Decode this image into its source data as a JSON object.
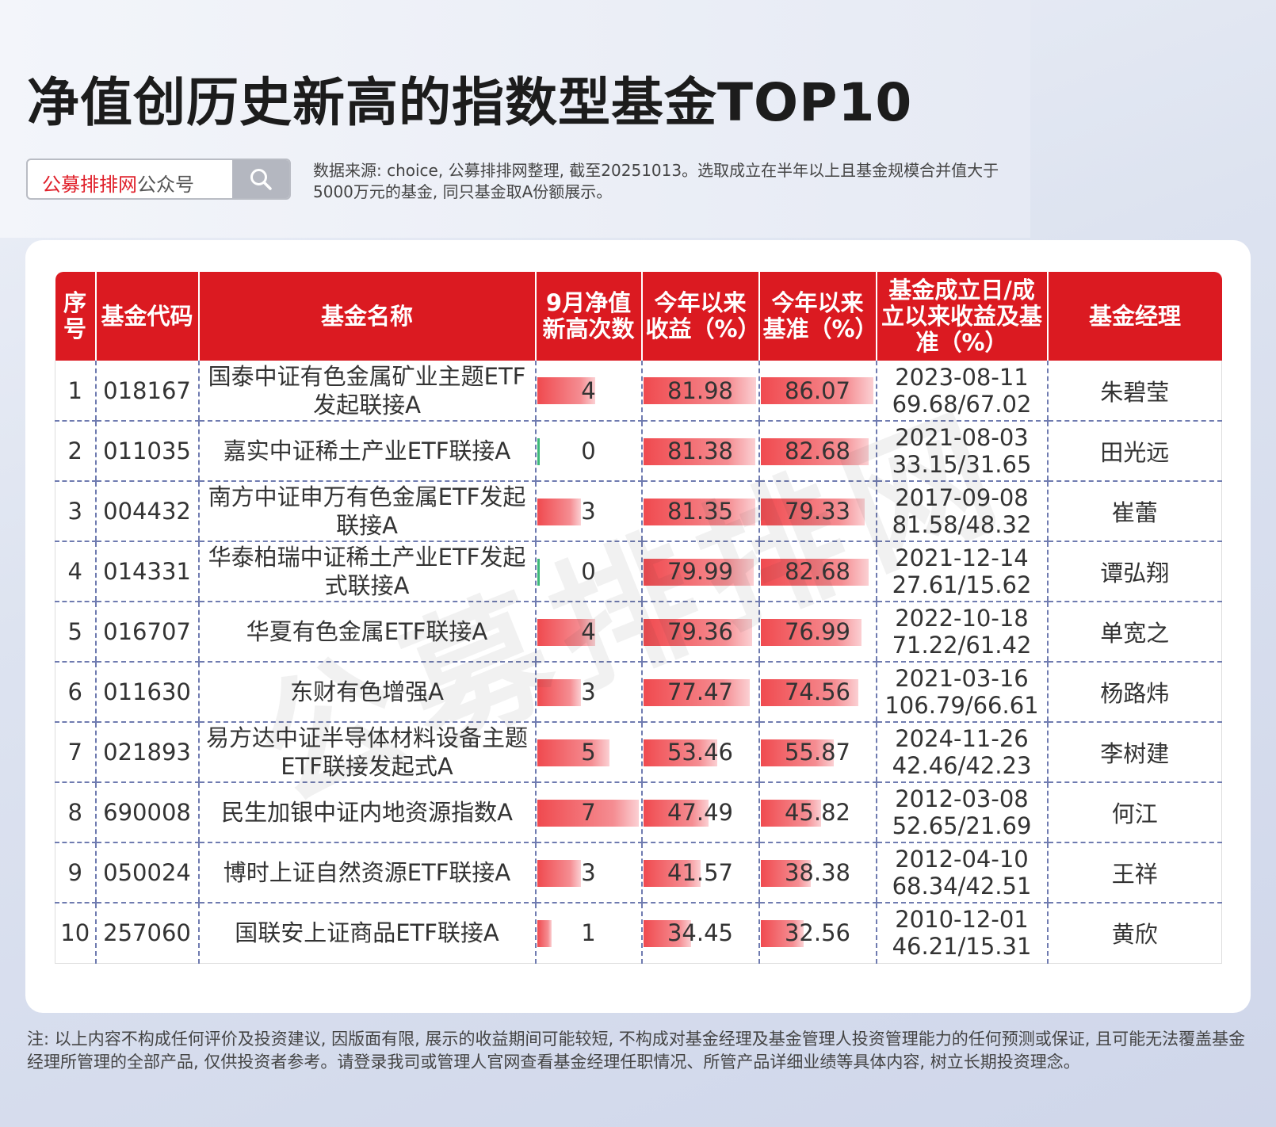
{
  "title": "净值创历史新高的指数型基金TOP10",
  "search": {
    "brand": "公募排排网",
    "suffix": "公众号"
  },
  "source_text": "数据来源: choice, 公募排排网整理, 截至20251013。选取成立在半年以上且基金规模合并值大于5000万元的基金, 同只基金取A份额展示。",
  "watermark": "公募排排网",
  "colors": {
    "header_red": "#db1a21",
    "bar_red": "#f04a4f",
    "zero_green": "#3cb878"
  },
  "table": {
    "headers": [
      "序号",
      "基金代码",
      "基金名称",
      "9月净值新高次数",
      "今年以来收益（%）",
      "今年以来基准（%）",
      "基金成立日/成立以来收益及基准（%）",
      "基金经理"
    ],
    "max": {
      "highs": 7,
      "ytd": 81.98,
      "bench": 86.07
    },
    "rows": [
      {
        "no": "1",
        "code": "018167",
        "name": "国泰中证有色金属矿业主题ETF发起联接A",
        "highs": "4",
        "ytd": "81.98",
        "bench": "86.07",
        "date": "2023-08-11",
        "perf": "69.68/67.02",
        "manager": "朱碧莹"
      },
      {
        "no": "2",
        "code": "011035",
        "name": "嘉实中证稀土产业ETF联接A",
        "highs": "0",
        "ytd": "81.38",
        "bench": "82.68",
        "date": "2021-08-03",
        "perf": "33.15/31.65",
        "manager": "田光远"
      },
      {
        "no": "3",
        "code": "004432",
        "name": "南方中证申万有色金属ETF发起联接A",
        "highs": "3",
        "ytd": "81.35",
        "bench": "79.33",
        "date": "2017-09-08",
        "perf": "81.58/48.32",
        "manager": "崔蕾"
      },
      {
        "no": "4",
        "code": "014331",
        "name": "华泰柏瑞中证稀土产业ETF发起式联接A",
        "highs": "0",
        "ytd": "79.99",
        "bench": "82.68",
        "date": "2021-12-14",
        "perf": "27.61/15.62",
        "manager": "谭弘翔"
      },
      {
        "no": "5",
        "code": "016707",
        "name": "华夏有色金属ETF联接A",
        "highs": "4",
        "ytd": "79.36",
        "bench": "76.99",
        "date": "2022-10-18",
        "perf": "71.22/61.42",
        "manager": "单宽之"
      },
      {
        "no": "6",
        "code": "011630",
        "name": "东财有色增强A",
        "highs": "3",
        "ytd": "77.47",
        "bench": "74.56",
        "date": "2021-03-16",
        "perf": "106.79/66.61",
        "manager": "杨路炜"
      },
      {
        "no": "7",
        "code": "021893",
        "name": "易方达中证半导体材料设备主题ETF联接发起式A",
        "highs": "5",
        "ytd": "53.46",
        "bench": "55.87",
        "date": "2024-11-26",
        "perf": "42.46/42.23",
        "manager": "李树建"
      },
      {
        "no": "8",
        "code": "690008",
        "name": "民生加银中证内地资源指数A",
        "highs": "7",
        "ytd": "47.49",
        "bench": "45.82",
        "date": "2012-03-08",
        "perf": "52.65/21.69",
        "manager": "何江"
      },
      {
        "no": "9",
        "code": "050024",
        "name": "博时上证自然资源ETF联接A",
        "highs": "3",
        "ytd": "41.57",
        "bench": "38.38",
        "date": "2012-04-10",
        "perf": "68.34/42.51",
        "manager": "王祥"
      },
      {
        "no": "10",
        "code": "257060",
        "name": "国联安上证商品ETF联接A",
        "highs": "1",
        "ytd": "34.45",
        "bench": "32.56",
        "date": "2010-12-01",
        "perf": "46.21/15.31",
        "manager": "黄欣"
      }
    ]
  },
  "note": "注: 以上内容不构成任何评价及投资建议, 因版面有限, 展示的收益期间可能较短, 不构成对基金经理及基金管理人投资管理能力的任何预测或保证, 且可能无法覆盖基金经理所管理的全部产品, 仅供投资者参考。请登录我司或管理人官网查看基金经理任职情况、所管产品详细业绩等具体内容, 树立长期投资理念。"
}
